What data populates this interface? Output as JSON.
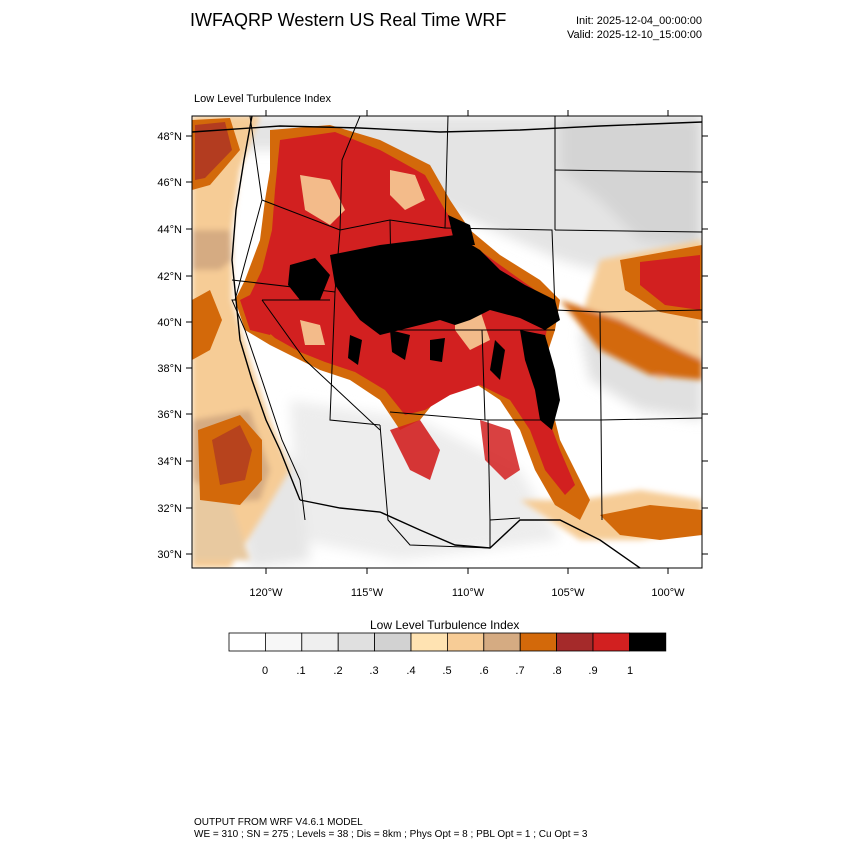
{
  "header": {
    "title": "IWFAQRP Western US Real Time WRF",
    "init": "Init: 2025-12-04_00:00:00",
    "valid": "Valid: 2025-12-10_15:00:00"
  },
  "map": {
    "field_label": "Low Level Turbulence Index",
    "lat_ticks": [
      "48°N",
      "46°N",
      "44°N",
      "42°N",
      "40°N",
      "38°N",
      "36°N",
      "34°N",
      "32°N",
      "30°N"
    ],
    "lon_ticks": [
      "120°W",
      "115°W",
      "110°W",
      "105°W",
      "100°W"
    ]
  },
  "colorbar": {
    "title": "Low Level Turbulence Index",
    "colors": [
      "#ffffff",
      "#f7f7f7",
      "#efefef",
      "#e0e0e0",
      "#d2d2d2",
      "#ffe3b2",
      "#f7cc96",
      "#d5ab82",
      "#d3690a",
      "#a52a2a",
      "#d22020",
      "#000000"
    ],
    "labels": [
      "0",
      ".1",
      ".2",
      ".3",
      ".4",
      ".5",
      ".6",
      ".7",
      ".8",
      ".9",
      "1"
    ]
  },
  "footer": {
    "line1": "OUTPUT FROM WRF V4.6.1 MODEL",
    "line2": "WE = 310 ; SN = 275 ; Levels = 38 ; Dis = 8km ; Phys Opt = 8 ; PBL Opt = 1 ; Cu Opt = 3"
  }
}
